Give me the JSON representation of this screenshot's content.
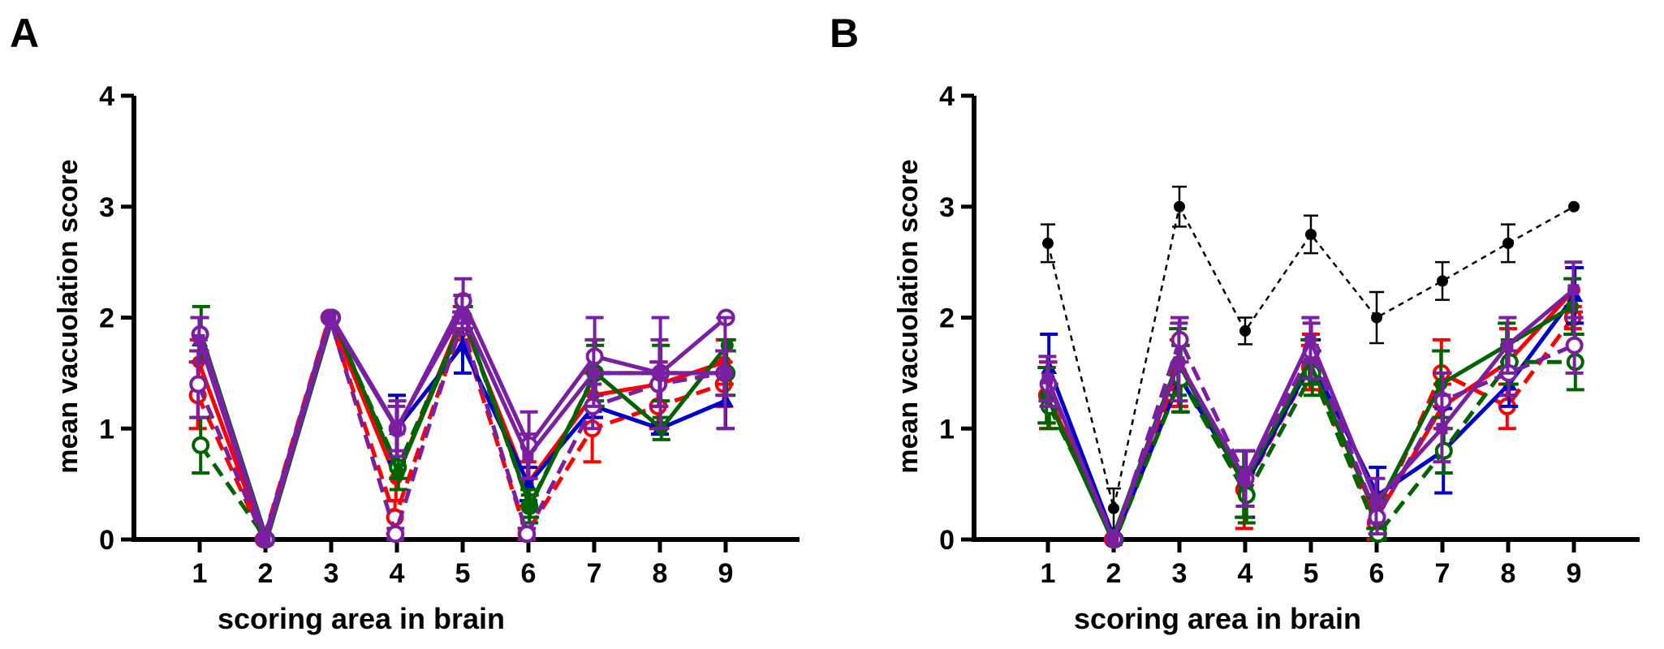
{
  "colors": {
    "axis": "#000000",
    "red": "#ff0000",
    "blue": "#0000cc",
    "green": "#006400",
    "purple": "#7a1fa2",
    "black": "#000000"
  },
  "chart_data": [
    {
      "type": "line",
      "panel_label": "A",
      "title": "",
      "xlabel": "scoring area in brain",
      "ylabel": "mean vacuolation score",
      "x": [
        1,
        2,
        3,
        4,
        5,
        6,
        7,
        8,
        9
      ],
      "x_tick_labels": [
        "1",
        "2",
        "3",
        "4",
        "5",
        "6",
        "7",
        "8",
        "9"
      ],
      "y_ticks": [
        0,
        1,
        2,
        3,
        4
      ],
      "y_tick_labels": [
        "0",
        "1",
        "2",
        "3",
        "4"
      ],
      "xlim": [
        0,
        10
      ],
      "ylim": [
        0,
        4
      ],
      "grid": false,
      "series": [
        {
          "color": "red",
          "dashed": true,
          "marker": "open-circle",
          "values": [
            1.3,
            0,
            2,
            0.2,
            1.9,
            0.05,
            1.0,
            1.2,
            1.4
          ],
          "errors": [
            0.3,
            0,
            0,
            0.15,
            0.1,
            0.05,
            0.3,
            0.2,
            0.2
          ]
        },
        {
          "color": "red",
          "dashed": false,
          "marker": "filled-circle",
          "values": [
            1.6,
            0,
            2,
            0.55,
            2.0,
            0.5,
            1.3,
            1.4,
            1.6
          ],
          "errors": [
            0.2,
            0,
            0,
            0.2,
            0.1,
            0.2,
            0.2,
            0.2,
            0.2
          ]
        },
        {
          "color": "blue",
          "dashed": false,
          "marker": "filled-triangle",
          "values": [
            1.8,
            0,
            2,
            1.0,
            1.75,
            0.5,
            1.2,
            1.0,
            1.25
          ],
          "errors": [
            0.2,
            0,
            0,
            0.3,
            0.25,
            0.15,
            0.1,
            0.05,
            0.25
          ]
        },
        {
          "color": "green",
          "dashed": true,
          "marker": "open-circle",
          "values": [
            0.85,
            0,
            2,
            0.65,
            2.0,
            0.3,
            1.5,
            1.5,
            1.5
          ],
          "errors": [
            0.25,
            0,
            0,
            0.1,
            0.1,
            0.15,
            0.25,
            0.25,
            0.2
          ]
        },
        {
          "color": "green",
          "dashed": false,
          "marker": "filled-circle",
          "values": [
            1.85,
            0,
            2,
            0.6,
            2.0,
            0.3,
            1.5,
            1.0,
            1.75
          ],
          "errors": [
            0.25,
            0,
            0,
            0.15,
            0.1,
            0.1,
            0.3,
            0.1,
            0.05
          ]
        },
        {
          "color": "purple",
          "dashed": true,
          "marker": "open-circle",
          "values": [
            1.4,
            0,
            2,
            0.05,
            1.95,
            0.05,
            1.2,
            1.4,
            1.5
          ],
          "errors": [
            0.3,
            0,
            0,
            0.05,
            0.1,
            0.05,
            0.2,
            0.2,
            0.2
          ]
        },
        {
          "color": "purple",
          "dashed": false,
          "marker": "open-circle",
          "values": [
            1.85,
            0,
            2,
            1.0,
            2.15,
            0.85,
            1.65,
            1.5,
            2.0
          ],
          "errors": [
            0.15,
            0,
            0,
            0.25,
            0.2,
            0.3,
            0.35,
            0.5,
            0.0
          ]
        },
        {
          "color": "purple",
          "dashed": false,
          "marker": "filled-square",
          "values": [
            1.8,
            0,
            2,
            1.0,
            2.05,
            0.75,
            1.5,
            1.5,
            1.5
          ],
          "errors": [
            0.2,
            0,
            0,
            0.2,
            0.15,
            0.2,
            0.3,
            0.3,
            0.5
          ]
        }
      ]
    },
    {
      "type": "line",
      "panel_label": "B",
      "title": "",
      "xlabel": "scoring area in brain",
      "ylabel": "mean vacuolation score",
      "x": [
        1,
        2,
        3,
        4,
        5,
        6,
        7,
        8,
        9
      ],
      "x_tick_labels": [
        "1",
        "2",
        "3",
        "4",
        "5",
        "6",
        "7",
        "8",
        "9"
      ],
      "y_ticks": [
        0,
        1,
        2,
        3,
        4
      ],
      "y_tick_labels": [
        "0",
        "1",
        "2",
        "3",
        "4"
      ],
      "xlim": [
        0,
        10
      ],
      "ylim": [
        0,
        4
      ],
      "grid": false,
      "series": [
        {
          "color": "black",
          "dashed": true,
          "marker": "filled-circle",
          "values": [
            2.67,
            0.28,
            3.0,
            1.88,
            2.75,
            2.0,
            2.33,
            2.67,
            3.0
          ],
          "errors": [
            0.17,
            0.18,
            0.18,
            0.12,
            0.17,
            0.23,
            0.17,
            0.17,
            0.0
          ]
        },
        {
          "color": "red",
          "dashed": true,
          "marker": "open-circle",
          "values": [
            1.3,
            0,
            1.5,
            0.45,
            1.55,
            0.15,
            1.5,
            1.2,
            2.0
          ],
          "errors": [
            0.25,
            0,
            0.3,
            0.35,
            0.2,
            0.15,
            0.3,
            0.2,
            0.1
          ]
        },
        {
          "color": "red",
          "dashed": false,
          "marker": "filled-circle",
          "values": [
            1.3,
            0,
            1.6,
            0.5,
            1.6,
            0.2,
            1.2,
            1.6,
            2.25
          ],
          "errors": [
            0.3,
            0,
            0.4,
            0.3,
            0.25,
            0.1,
            0.2,
            0.3,
            0.2
          ]
        },
        {
          "color": "blue",
          "dashed": false,
          "marker": "filled-triangle",
          "values": [
            1.55,
            0,
            1.45,
            0.5,
            1.6,
            0.4,
            0.8,
            1.4,
            2.2
          ],
          "errors": [
            0.3,
            0,
            0.3,
            0.3,
            0.2,
            0.25,
            0.38,
            0.2,
            0.25
          ]
        },
        {
          "color": "green",
          "dashed": true,
          "marker": "open-circle",
          "values": [
            1.2,
            0,
            1.45,
            0.4,
            1.5,
            0.05,
            0.8,
            1.6,
            1.6
          ],
          "errors": [
            0.2,
            0,
            0.3,
            0.25,
            0.2,
            0.05,
            0.2,
            0.2,
            0.25
          ]
        },
        {
          "color": "green",
          "dashed": false,
          "marker": "filled-circle",
          "values": [
            1.3,
            0,
            1.6,
            0.5,
            1.6,
            0.25,
            1.4,
            1.75,
            2.1
          ],
          "errors": [
            0.25,
            0,
            0.3,
            0.3,
            0.2,
            0.15,
            0.3,
            0.2,
            0.25
          ]
        },
        {
          "color": "purple",
          "dashed": true,
          "marker": "open-circle",
          "values": [
            1.4,
            0,
            1.8,
            0.55,
            1.7,
            0.2,
            1.25,
            1.5,
            1.75
          ],
          "errors": [
            0.2,
            0,
            0.2,
            0.25,
            0.25,
            0.15,
            0.25,
            0.2,
            0.25
          ]
        },
        {
          "color": "purple",
          "dashed": false,
          "marker": "filled-square",
          "values": [
            1.45,
            0,
            1.6,
            0.55,
            1.8,
            0.35,
            1.0,
            1.75,
            2.25
          ],
          "errors": [
            0.2,
            0,
            0.35,
            0.25,
            0.2,
            0.2,
            0.3,
            0.25,
            0.25
          ]
        }
      ]
    }
  ]
}
